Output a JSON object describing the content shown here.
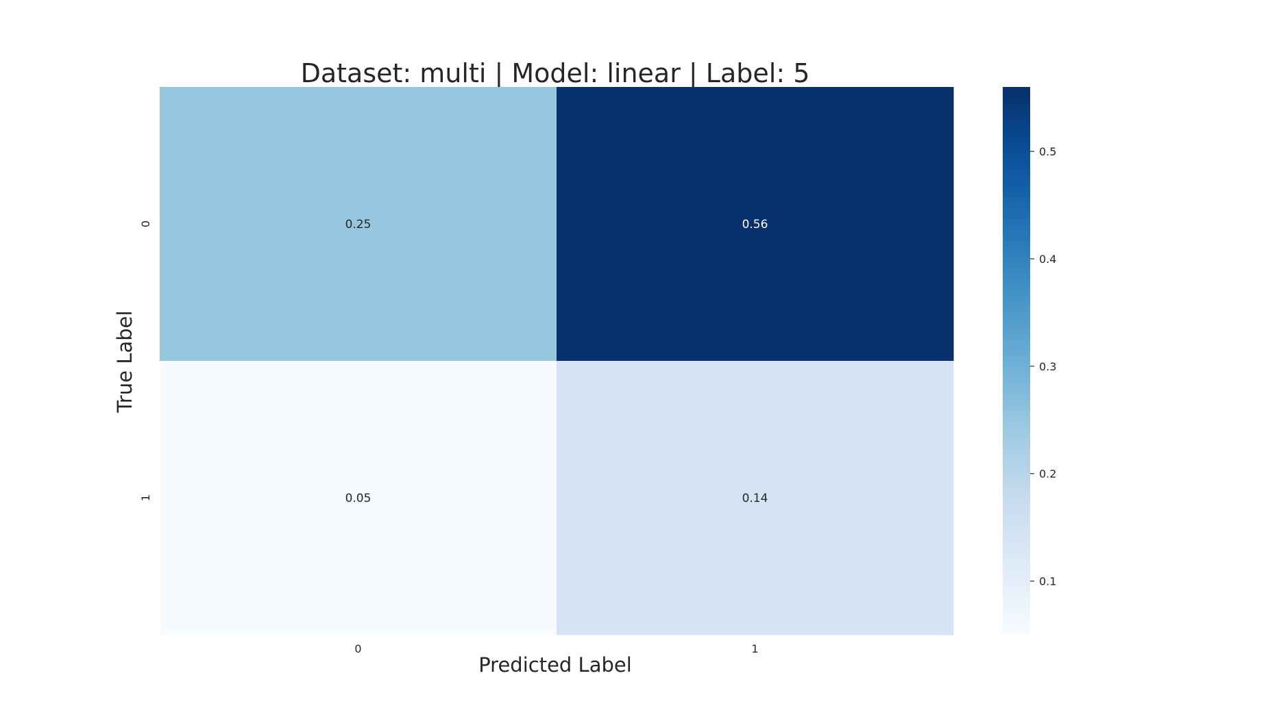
{
  "chart_data": {
    "type": "heatmap",
    "title": "Dataset: multi | Model: linear | Label: 5",
    "xlabel": "Predicted Label",
    "ylabel": "True Label",
    "x_categories": [
      "0",
      "1"
    ],
    "y_categories": [
      "0",
      "1"
    ],
    "values": [
      [
        0.25,
        0.56
      ],
      [
        0.05,
        0.14
      ]
    ],
    "cell_labels": [
      [
        "0.25",
        "0.56"
      ],
      [
        "0.05",
        "0.14"
      ]
    ],
    "colormap": "Blues",
    "colorbar": {
      "range": [
        0.05,
        0.56
      ],
      "ticks": [
        0.1,
        0.2,
        0.3,
        0.4,
        0.5
      ],
      "tick_labels": [
        "0.1",
        "0.2",
        "0.3",
        "0.4",
        "0.5"
      ]
    },
    "colors": {
      "text_dark": "#262626",
      "text_light": "#ffffff"
    }
  }
}
